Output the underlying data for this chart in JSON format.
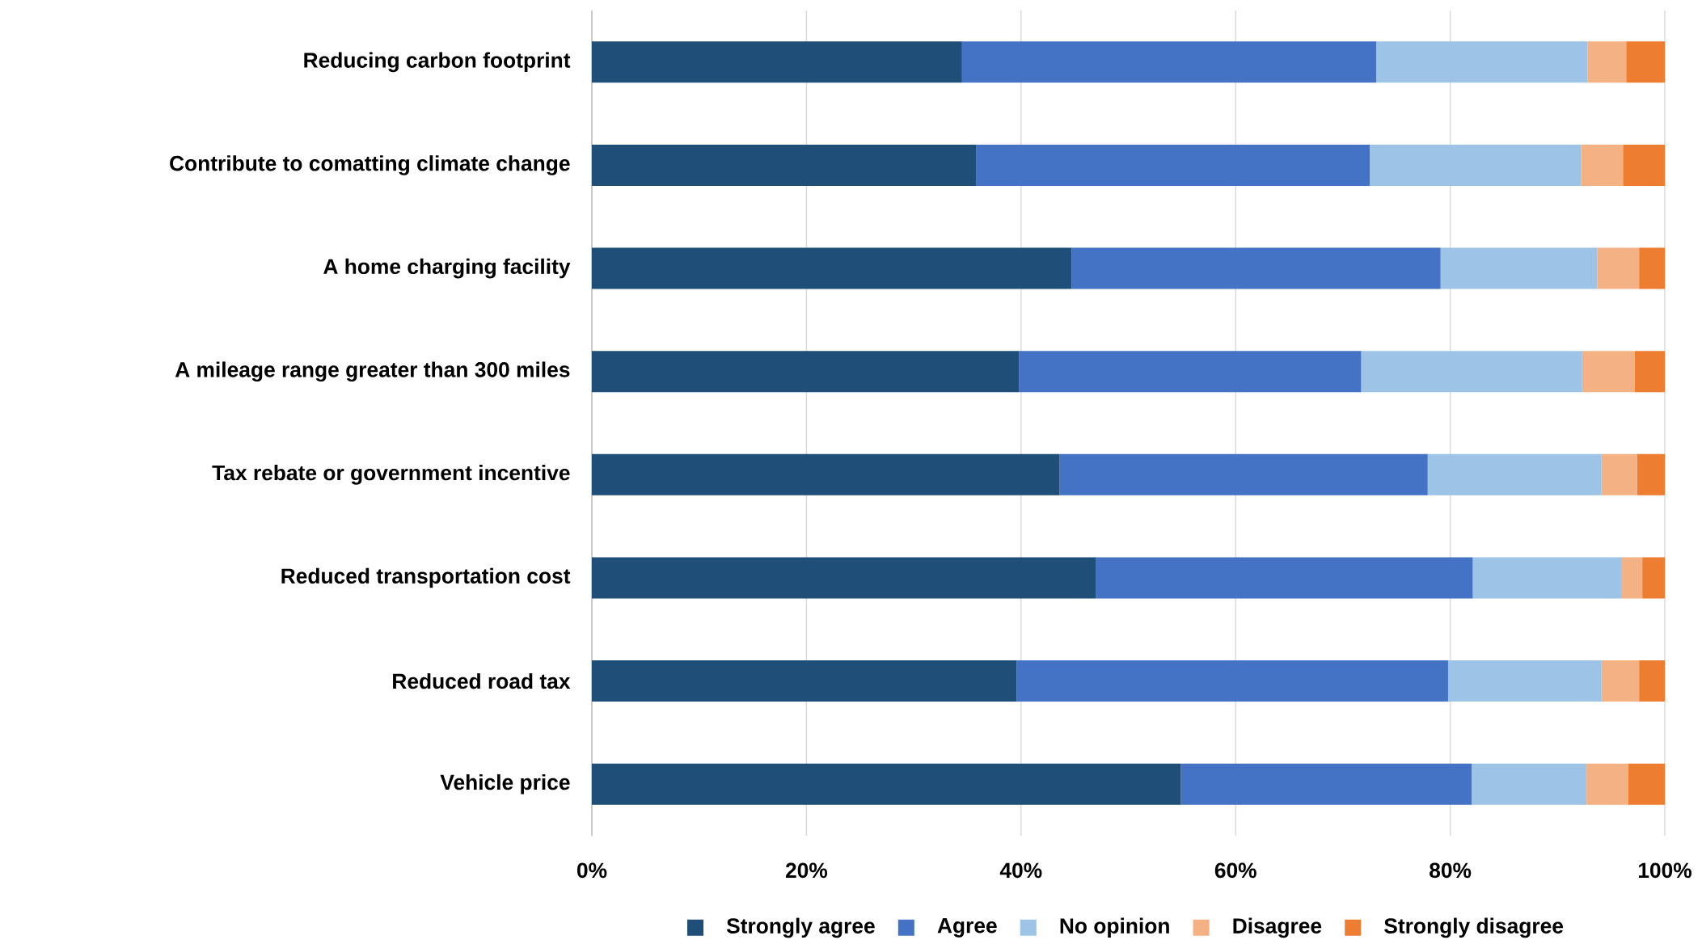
{
  "chart_data": {
    "type": "bar",
    "orientation": "horizontal",
    "stacked": true,
    "categories": [
      "Reducing carbon footprint",
      "Contribute to comatting climate change",
      "A home charging facility",
      "A mileage range greater than 300 miles",
      "Tax rebate or government incentive",
      "Reduced transportation cost",
      "Reduced road tax",
      "Vehicle price"
    ],
    "series": [
      {
        "name": "Strongly agree",
        "color": "#1f4e79",
        "values": [
          34.5,
          35.8,
          44.7,
          39.8,
          43.6,
          47.0,
          39.6,
          54.9
        ]
      },
      {
        "name": "Agree",
        "color": "#4472c4",
        "values": [
          38.6,
          36.7,
          34.4,
          31.9,
          34.3,
          35.1,
          40.2,
          27.1
        ]
      },
      {
        "name": "No opinion",
        "color": "#9dc3e6",
        "values": [
          19.7,
          19.7,
          14.6,
          20.6,
          16.2,
          13.9,
          14.3,
          10.7
        ]
      },
      {
        "name": "Disagree",
        "color": "#f4b183",
        "values": [
          3.6,
          3.9,
          3.9,
          4.9,
          3.3,
          1.9,
          3.5,
          3.9
        ]
      },
      {
        "name": "Strongly disagree",
        "color": "#ed7d31",
        "values": [
          3.6,
          3.9,
          2.4,
          2.8,
          2.6,
          2.1,
          2.4,
          3.4
        ]
      }
    ],
    "xlim": [
      0,
      100
    ],
    "xticks": [
      {
        "value": 0,
        "label": "0%"
      },
      {
        "value": 20,
        "label": "20%"
      },
      {
        "value": 40,
        "label": "40%"
      },
      {
        "value": 60,
        "label": "60%"
      },
      {
        "value": 80,
        "label": "80%"
      },
      {
        "value": 100,
        "label": "100%"
      }
    ],
    "grid": "x",
    "legend": "bottom"
  }
}
